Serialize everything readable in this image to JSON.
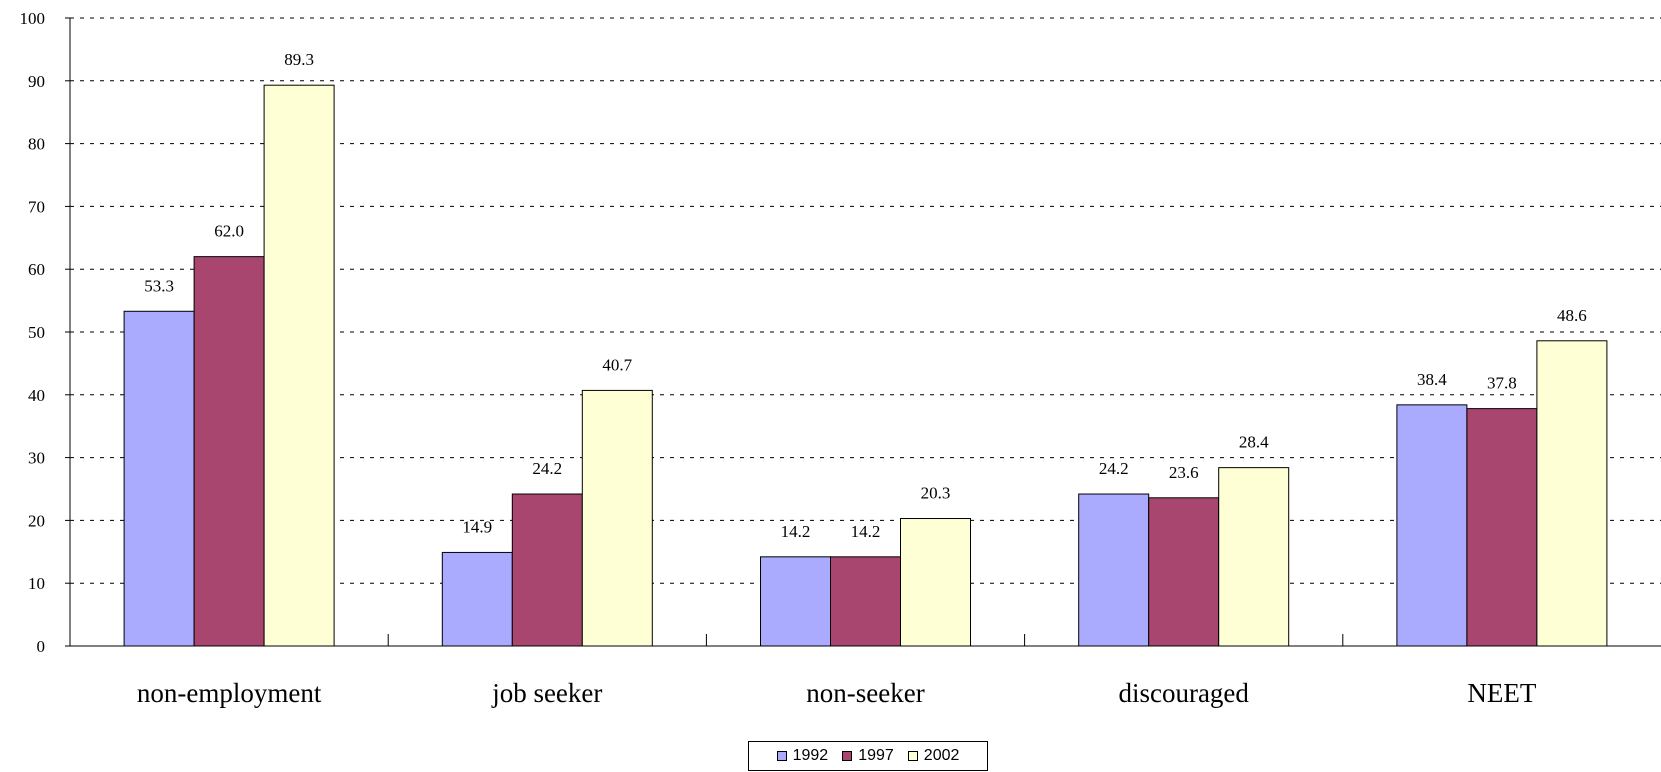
{
  "chart_data": {
    "type": "bar",
    "categories": [
      "non-employment",
      "job seeker",
      "non-seeker",
      "discouraged",
      "NEET"
    ],
    "series": [
      {
        "name": "1992",
        "values": [
          53.3,
          14.9,
          14.2,
          24.2,
          38.4
        ],
        "color": "#aaaaff"
      },
      {
        "name": "1997",
        "values": [
          62.0,
          24.2,
          14.2,
          23.6,
          37.8
        ],
        "color": "#a8466f"
      },
      {
        "name": "2002",
        "values": [
          89.3,
          40.7,
          20.3,
          28.4,
          48.6
        ],
        "color": "#ffffd6"
      }
    ],
    "data_labels": [
      [
        "53.3",
        "14.9",
        "14.2",
        "24.2",
        "38.4"
      ],
      [
        "62.0",
        "24.2",
        "14.2",
        "23.6",
        "37.8"
      ],
      [
        "89.3",
        "40.7",
        "20.3",
        "28.4",
        "48.6"
      ]
    ],
    "ylim": [
      0,
      100
    ],
    "yticks": [
      0,
      10,
      20,
      30,
      40,
      50,
      60,
      70,
      80,
      90,
      100
    ],
    "grid": "dashed horizontal",
    "legend_position": "bottom-center",
    "title": "",
    "xlabel": "",
    "ylabel": ""
  }
}
